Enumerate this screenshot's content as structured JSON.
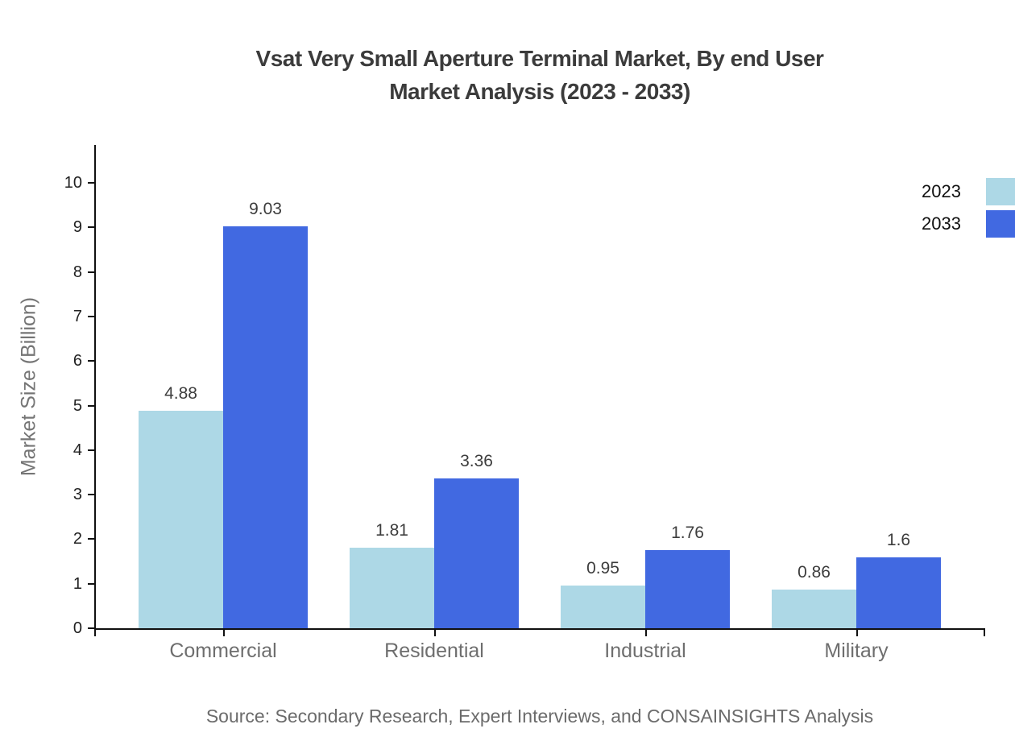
{
  "title": {
    "line1": "Vsat Very Small Aperture Terminal Market, By end User",
    "line2": "Market Analysis (2023 - 2033)"
  },
  "source": {
    "text": "Source: Secondary Research, Expert Interviews, and CONSAINSIGHTS Analysis"
  },
  "legend": {
    "position": "top-right",
    "items": [
      {
        "label": "2023",
        "color": "#add8e6"
      },
      {
        "label": "2033",
        "color": "#4169e1"
      }
    ]
  },
  "chart_data": {
    "type": "bar",
    "title": "Vsat Very Small Aperture Terminal Market, By end User Market Analysis (2023 - 2033)",
    "categories": [
      "Commercial",
      "Residential",
      "Industrial",
      "Military"
    ],
    "series": [
      {
        "name": "2023",
        "color": "#add8e6",
        "values": [
          4.88,
          1.81,
          0.95,
          0.86
        ],
        "value_labels": [
          "4.88",
          "1.81",
          "0.95",
          "0.86"
        ]
      },
      {
        "name": "2033",
        "color": "#4169e1",
        "values": [
          9.03,
          3.36,
          1.76,
          1.6
        ],
        "value_labels": [
          "9.03",
          "3.36",
          "1.76",
          "1.6"
        ]
      }
    ],
    "xlabel": "",
    "ylabel": "Market Size (Billion)",
    "ylim": [
      0,
      10
    ],
    "yticks": [
      0,
      1,
      2,
      3,
      4,
      5,
      6,
      7,
      8,
      9,
      10
    ],
    "grid": false,
    "legend_position": "top-right"
  },
  "colors": {
    "background": "#ffffff",
    "title_text": "#3b3b3b",
    "axis": "#111111",
    "tick_label": "#212121",
    "category_label": "#6e6e6e",
    "y_axis_title": "#757575",
    "value_label": "#3d3d3d",
    "source_text": "#6b6b6b",
    "series_2023": "#add8e6",
    "series_2033": "#4169e1"
  }
}
